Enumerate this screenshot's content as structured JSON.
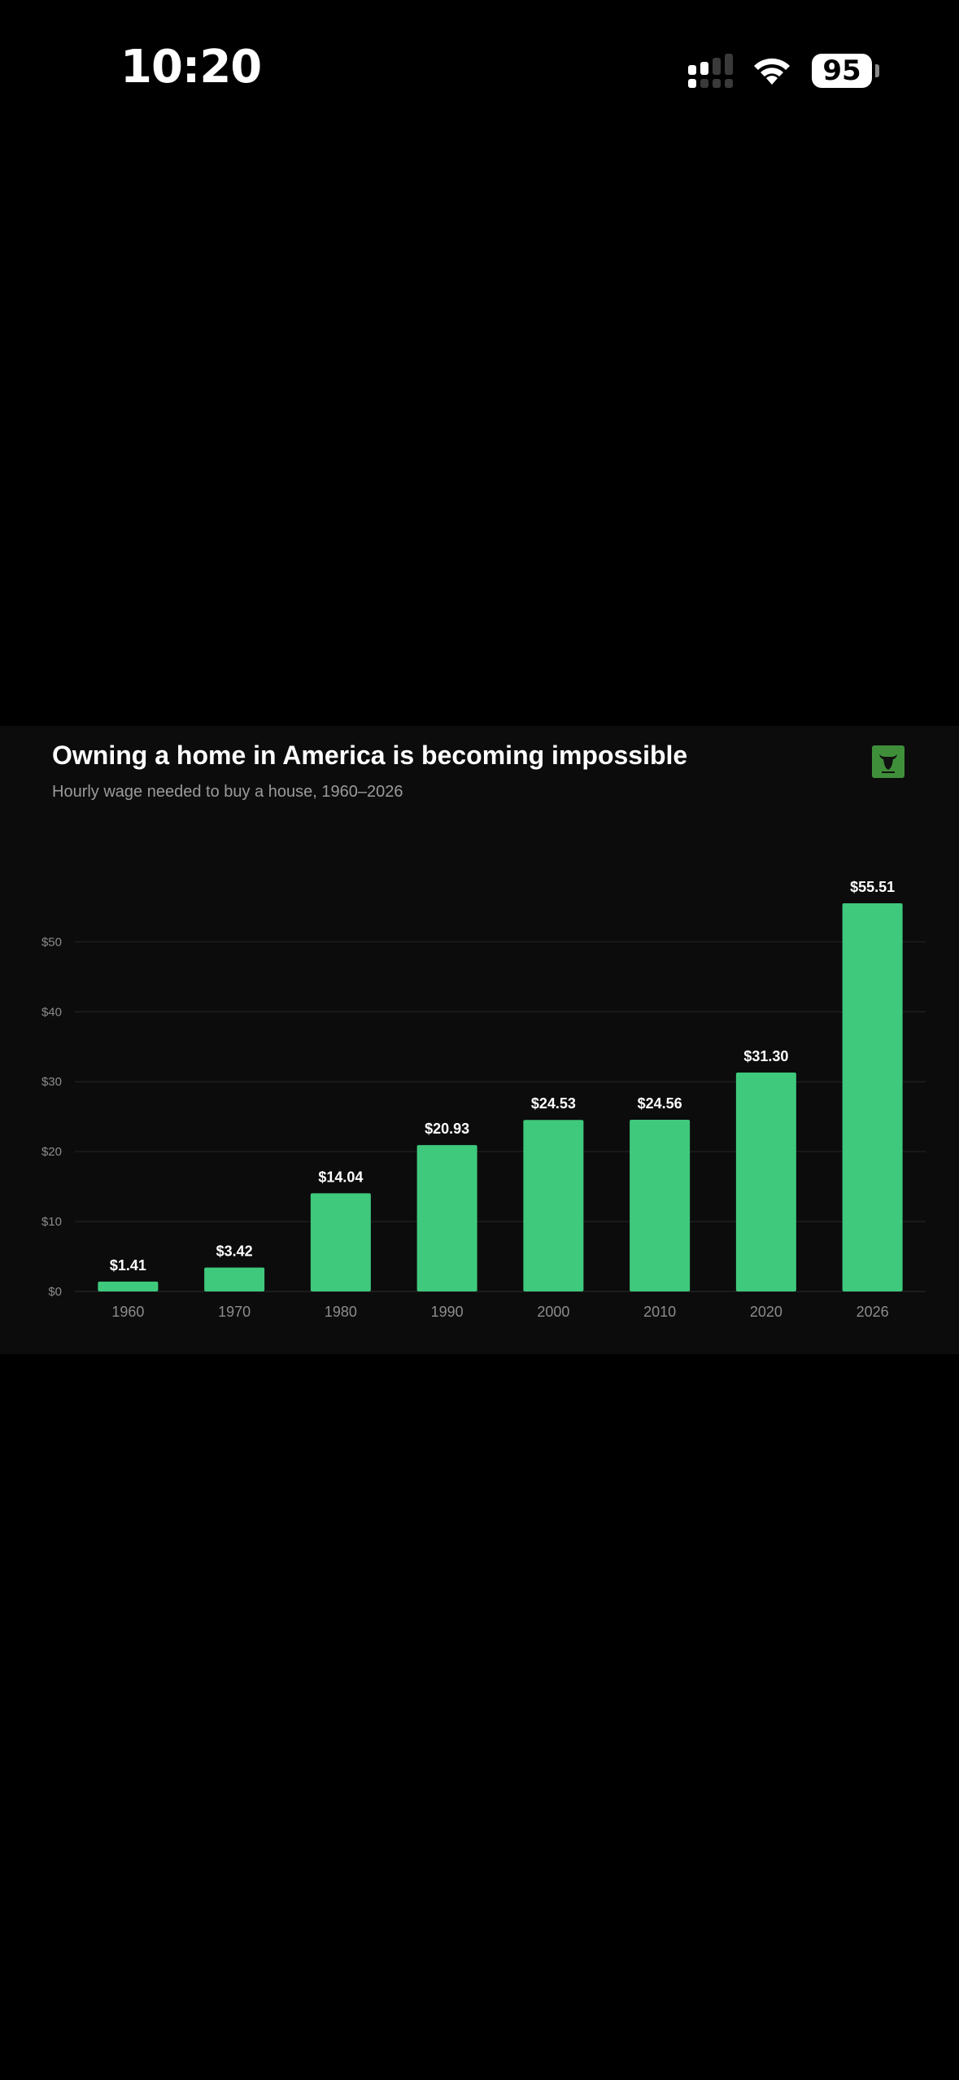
{
  "status_bar": {
    "time": "10:20",
    "battery_level": "95"
  },
  "chart": {
    "title": "Owning a home in America is becoming impossible",
    "subtitle": "Hourly wage needed to buy a house, 1960–2026"
  },
  "colors": {
    "bar": "#3fc97d",
    "background": "#0c0c0c",
    "page": "#000000",
    "gridline": "#262626",
    "axis_text": "#8c8c8c",
    "logo": "#3f8f3a"
  },
  "chart_data": {
    "type": "bar",
    "title": "Owning a home in America is becoming impossible",
    "subtitle": "Hourly wage needed to buy a house, 1960–2026",
    "categories": [
      "1960",
      "1970",
      "1980",
      "1990",
      "2000",
      "2010",
      "2020",
      "2026"
    ],
    "values": [
      1.41,
      3.42,
      14.04,
      20.93,
      24.53,
      24.56,
      31.3,
      55.51
    ],
    "data_labels": [
      "$1.41",
      "$3.42",
      "$14.04",
      "$20.93",
      "$24.53",
      "$24.56",
      "$31.30",
      "$55.51"
    ],
    "yticks": [
      0,
      10,
      20,
      30,
      40,
      50
    ],
    "ytick_labels": [
      "$0",
      "$10",
      "$20",
      "$30",
      "$40",
      "$50"
    ],
    "ylim": [
      0,
      55.51
    ],
    "xlabel": "",
    "ylabel": "",
    "grid": true,
    "legend": "none"
  }
}
